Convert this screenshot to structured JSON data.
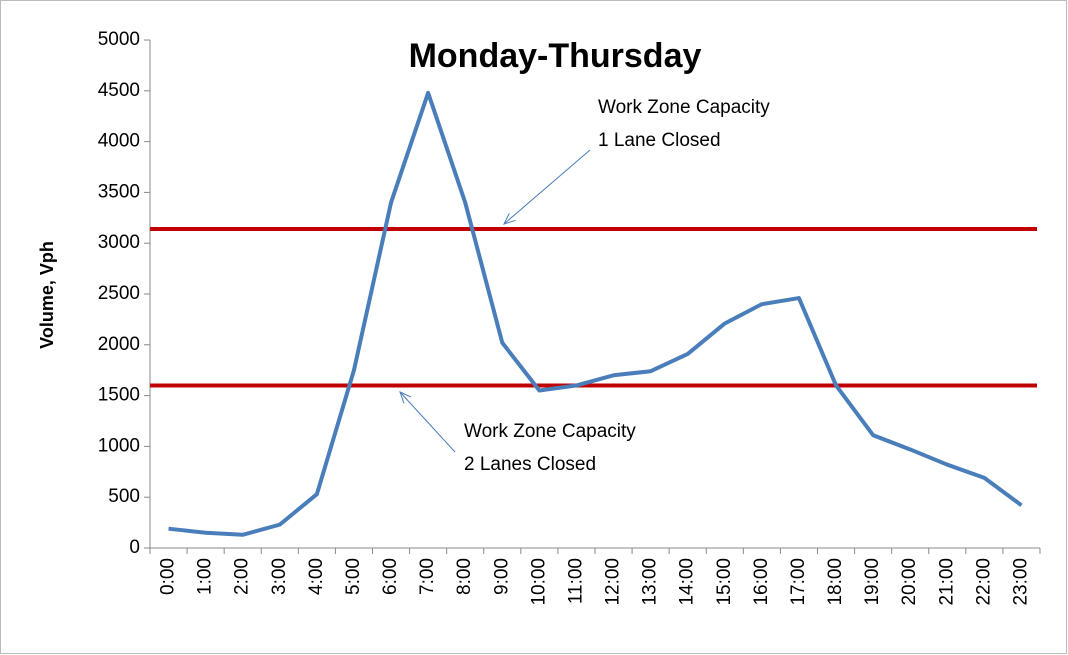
{
  "chart_data": {
    "type": "line",
    "title": "Monday-Thursday",
    "y_label": "Volume, Vph",
    "categories": [
      "0:00",
      "1:00",
      "2:00",
      "3:00",
      "4:00",
      "5:00",
      "6:00",
      "7:00",
      "8:00",
      "9:00",
      "10:00",
      "11:00",
      "12:00",
      "13:00",
      "14:00",
      "15:00",
      "16:00",
      "17:00",
      "18:00",
      "19:00",
      "20:00",
      "21:00",
      "22:00",
      "23:00"
    ],
    "series": [
      {
        "color": "#4a7ebb",
        "values": [
          190,
          150,
          130,
          230,
          530,
          1750,
          3400,
          4480,
          3400,
          2020,
          1550,
          1600,
          1700,
          1740,
          1910,
          2210,
          2400,
          2460,
          1600,
          1110,
          970,
          820,
          690,
          420
        ]
      }
    ],
    "ylim": [
      0,
      5000
    ],
    "yticks": [
      0,
      500,
      1000,
      1500,
      2000,
      2500,
      3000,
      3500,
      4000,
      4500,
      5000
    ],
    "reference_lines": [
      {
        "value": 3140,
        "color": "#c00000"
      },
      {
        "value": 1600,
        "color": "#c00000"
      }
    ],
    "annotations": [
      {
        "lines": [
          "Work Zone Capacity",
          "1 Lane Closed"
        ]
      },
      {
        "lines": [
          "Work Zone Capacity",
          "2 Lanes Closed"
        ]
      }
    ]
  }
}
